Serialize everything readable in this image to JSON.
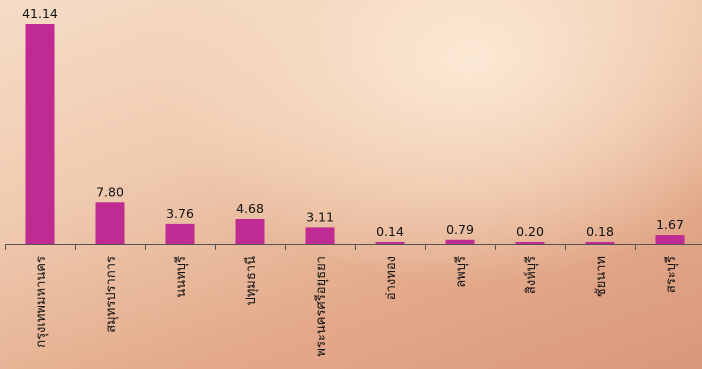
{
  "chart_data": {
    "type": "bar",
    "categories": [
      "กรุงเทพมหานคร",
      "สมุทรปราการ",
      "นนทบุรี",
      "ปทุมธานี",
      "พระนครศรีอยุธยา",
      "อ่างทอง",
      "ลพบุรี",
      "สิงห์บุรี",
      "ชัยนาท",
      "สระบุรี"
    ],
    "values": [
      41.14,
      7.8,
      3.76,
      4.68,
      3.11,
      0.14,
      0.79,
      0.2,
      0.18,
      1.67
    ],
    "data_labels": [
      "41.14",
      "7.80",
      "3.76",
      "4.68",
      "3.11",
      "0.14",
      "0.79",
      "0.20",
      "0.18",
      "1.67"
    ],
    "title": "",
    "xlabel": "",
    "ylabel": "",
    "ylim": [
      0,
      41.14
    ],
    "grid": false,
    "legend": "none",
    "bar_color": "#bf2b92",
    "axis_color": "#555555",
    "label_color": "#111111"
  }
}
